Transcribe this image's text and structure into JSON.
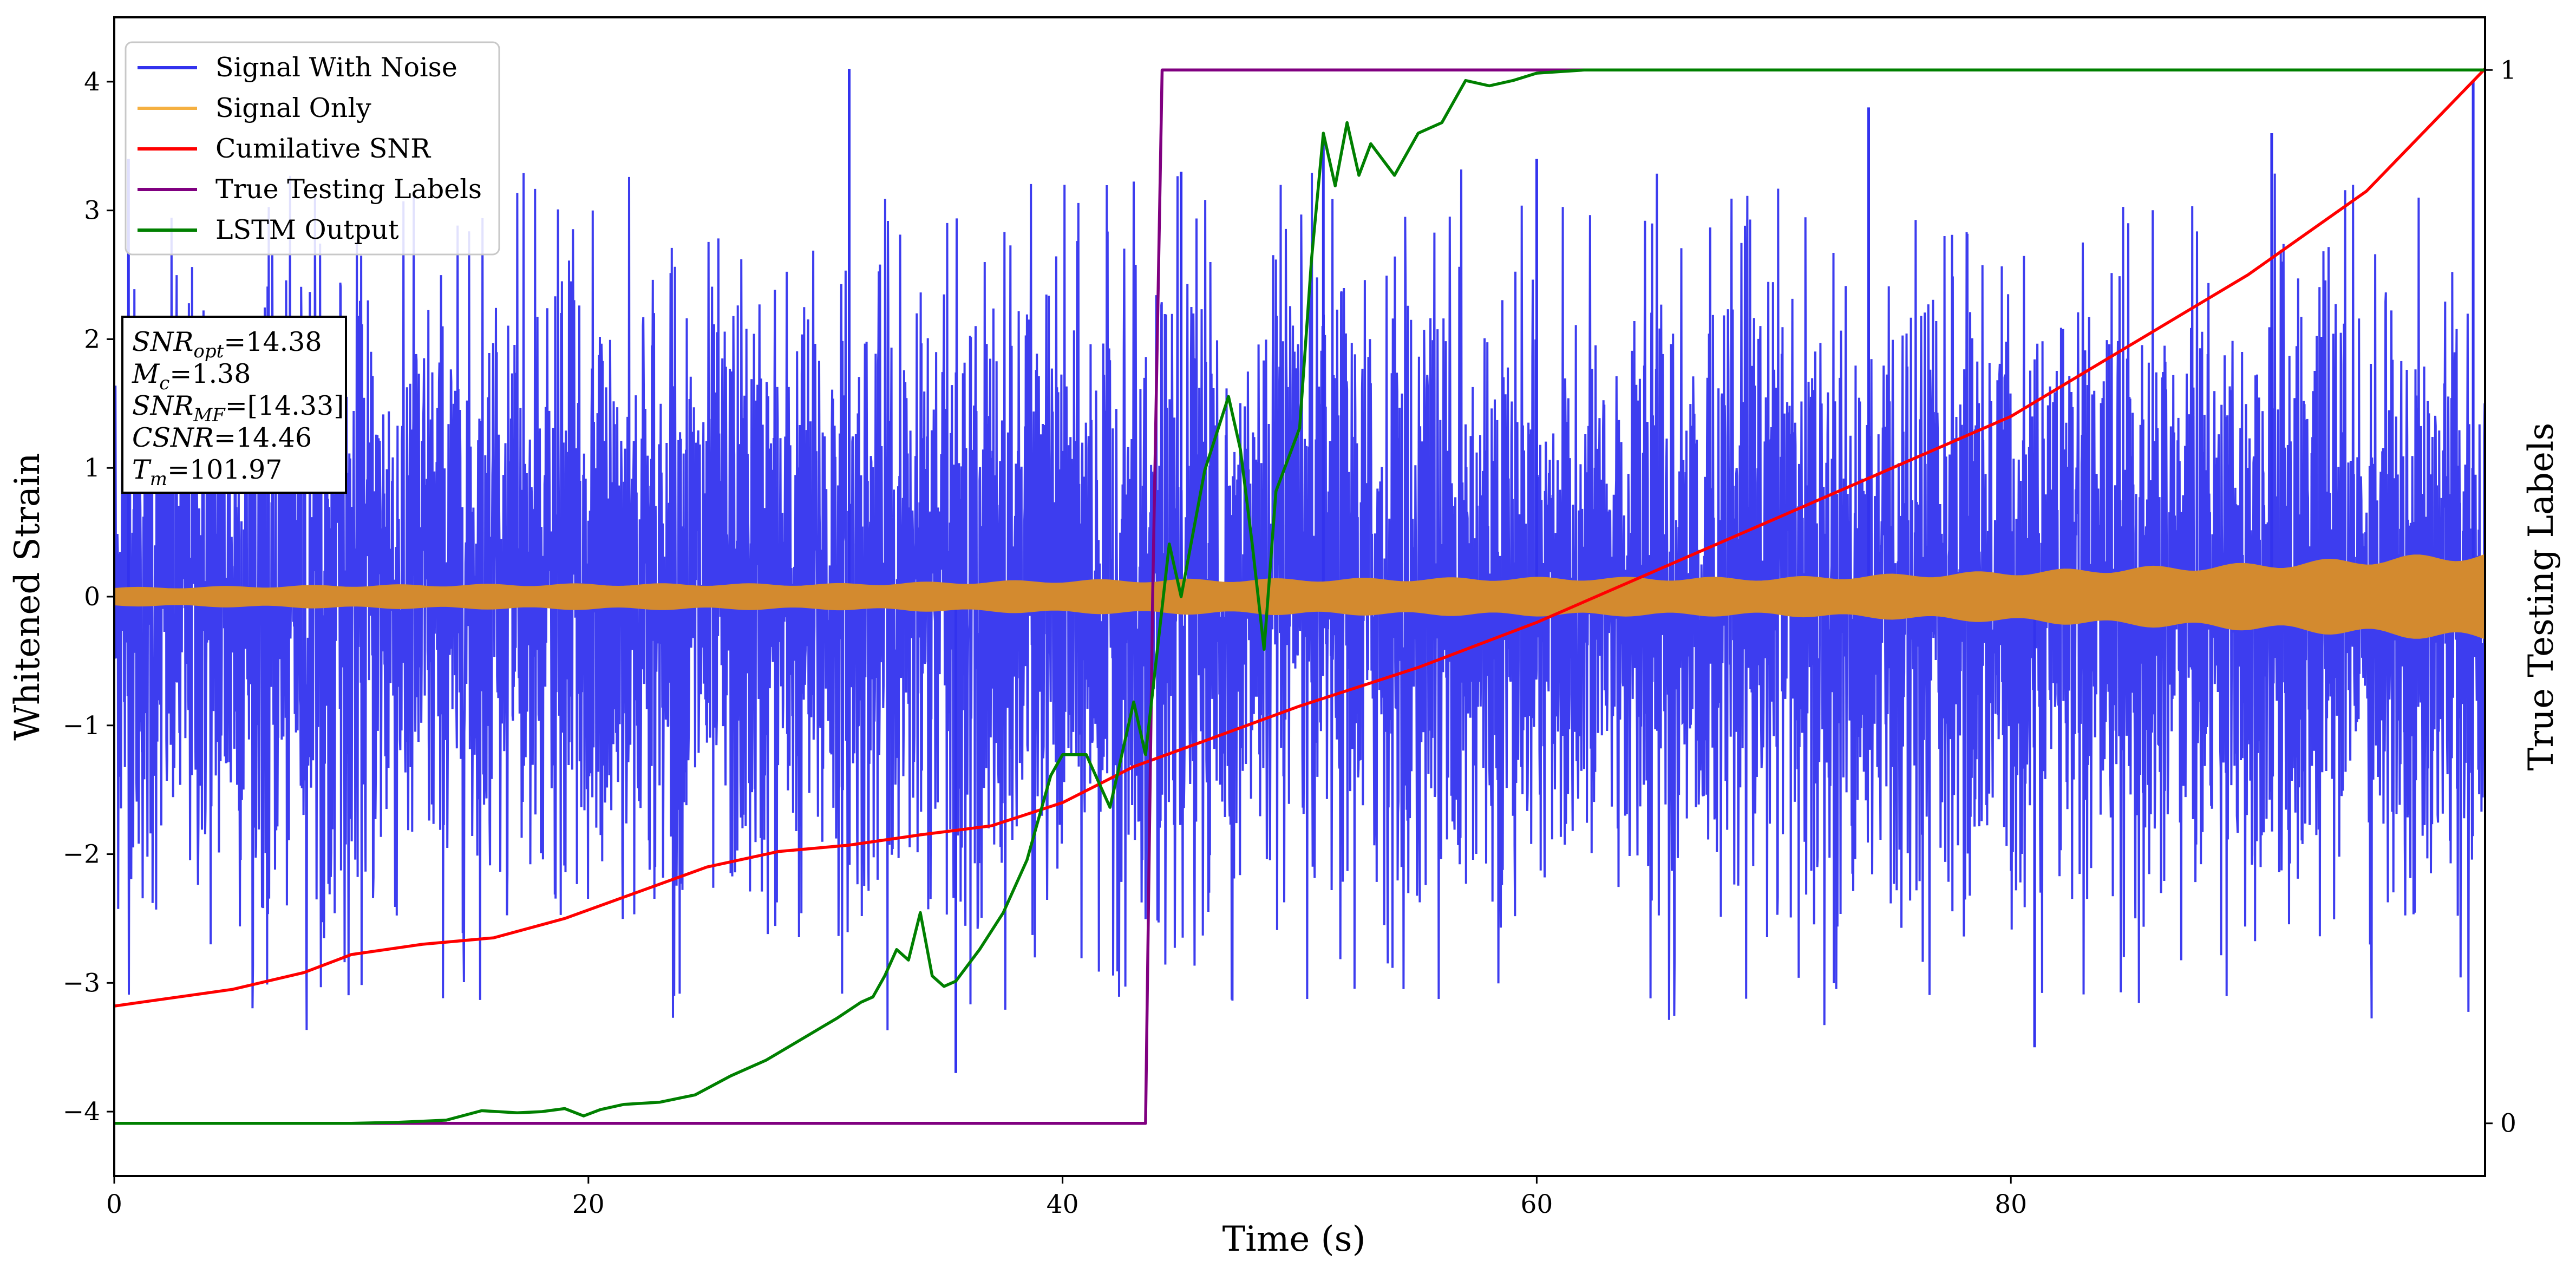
{
  "chart_data": {
    "type": "line",
    "xlabel": "Time (s)",
    "ylabel": "Whitened Strain",
    "y2label": "True Testing Labels",
    "xlim": [
      0,
      100
    ],
    "ylim": [
      -4.5,
      4.5
    ],
    "y2lim": [
      -0.05,
      1.05
    ],
    "xticks": [
      "0",
      "20",
      "40",
      "60",
      "80"
    ],
    "yticks": [
      "-4",
      "-3",
      "-2",
      "-1",
      "0",
      "1",
      "2",
      "3",
      "4"
    ],
    "y2ticks": [
      "0",
      "1"
    ],
    "grid": false,
    "legend_position": "top-left",
    "legend": [
      {
        "label": "Signal With Noise",
        "color": "#3333ee"
      },
      {
        "label": "Signal Only",
        "color": "#f5b041"
      },
      {
        "label": "Cumilative SNR",
        "color": "#ff0000"
      },
      {
        "label": "True Testing Labels",
        "color": "#800080"
      },
      {
        "label": "LSTM Output",
        "color": "#008000"
      }
    ],
    "info_box": [
      {
        "sym": "SNR",
        "sub": "opt",
        "value": "=14.38"
      },
      {
        "sym": "M",
        "sub": "c",
        "value": "=1.38"
      },
      {
        "sym": "SNR",
        "sub": "MF",
        "value": "=[14.33]"
      },
      {
        "sym": "CSNR",
        "sub": "",
        "value": "=14.46"
      },
      {
        "sym": "T",
        "sub": "m",
        "value": "=101.97"
      }
    ],
    "series": [
      {
        "name": "Signal With Noise",
        "axis": "left",
        "style": "noise_band",
        "color": "#3333ee",
        "typical_amplitude": 1.9,
        "peaks": [
          [
            0.6,
            3.4
          ],
          [
            31.0,
            4.1
          ],
          [
            35.5,
            -3.7
          ],
          [
            45.0,
            3.3
          ],
          [
            51.0,
            3.6
          ],
          [
            60.0,
            3.4
          ],
          [
            74.0,
            3.8
          ],
          [
            81.0,
            -3.5
          ],
          [
            91.0,
            3.6
          ],
          [
            99.5,
            4.0
          ]
        ]
      },
      {
        "name": "Signal Only",
        "axis": "left",
        "style": "envelope",
        "color": "#d38a2f",
        "x": [
          0,
          10,
          20,
          30,
          40,
          50,
          60,
          70,
          80,
          90,
          100
        ],
        "amplitude": [
          0.07,
          0.09,
          0.1,
          0.1,
          0.13,
          0.14,
          0.15,
          0.15,
          0.2,
          0.26,
          0.35
        ]
      },
      {
        "name": "Cumilative SNR",
        "axis": "left",
        "style": "line",
        "color": "#ff0000",
        "x": [
          0,
          5,
          8,
          10,
          13,
          16,
          19,
          22,
          25,
          28,
          31,
          34,
          37,
          40,
          43,
          46,
          50,
          55,
          60,
          65,
          70,
          75,
          80,
          85,
          90,
          95,
          100
        ],
        "y": [
          -3.18,
          -3.05,
          -2.92,
          -2.78,
          -2.7,
          -2.65,
          -2.5,
          -2.3,
          -2.1,
          -1.98,
          -1.93,
          -1.85,
          -1.78,
          -1.6,
          -1.32,
          -1.12,
          -0.85,
          -0.55,
          -0.2,
          0.2,
          0.6,
          1.0,
          1.4,
          1.95,
          2.5,
          3.15,
          4.1
        ]
      },
      {
        "name": "True Testing Labels",
        "axis": "right",
        "style": "line",
        "color": "#800080",
        "x": [
          0,
          43.5,
          43.8,
          44.2,
          100
        ],
        "y": [
          0,
          0,
          0.5,
          1,
          1
        ]
      },
      {
        "name": "LSTM Output",
        "axis": "right",
        "style": "line",
        "color": "#008000",
        "x": [
          0,
          10,
          12,
          14,
          15.5,
          17,
          18,
          19,
          19.8,
          20.5,
          21.5,
          23,
          24.5,
          26,
          27.5,
          29,
          30.5,
          31.5,
          32,
          32.5,
          33,
          33.5,
          34,
          34.5,
          35,
          35.5,
          36.5,
          37.5,
          38.5,
          39.5,
          40,
          41,
          42,
          43,
          43.5,
          44,
          44.5,
          45,
          46,
          47,
          47.5,
          48,
          48.5,
          49,
          49.5,
          50,
          50.5,
          51,
          51.5,
          52,
          52.5,
          53,
          54,
          55,
          56,
          57,
          58,
          59,
          60,
          62,
          65,
          70,
          80,
          90,
          100
        ],
        "y": [
          0,
          0,
          0.001,
          0.003,
          0.012,
          0.01,
          0.011,
          0.014,
          0.007,
          0.013,
          0.018,
          0.02,
          0.027,
          0.045,
          0.06,
          0.08,
          0.1,
          0.115,
          0.12,
          0.14,
          0.165,
          0.155,
          0.2,
          0.14,
          0.13,
          0.135,
          0.165,
          0.2,
          0.25,
          0.33,
          0.35,
          0.35,
          0.3,
          0.4,
          0.35,
          0.45,
          0.55,
          0.5,
          0.62,
          0.69,
          0.64,
          0.55,
          0.45,
          0.6,
          0.63,
          0.66,
          0.82,
          0.94,
          0.89,
          0.95,
          0.9,
          0.93,
          0.9,
          0.94,
          0.95,
          0.99,
          0.985,
          0.99,
          0.997,
          1.0,
          1.0,
          1.0,
          1.0,
          1.0,
          1.0
        ]
      }
    ]
  }
}
